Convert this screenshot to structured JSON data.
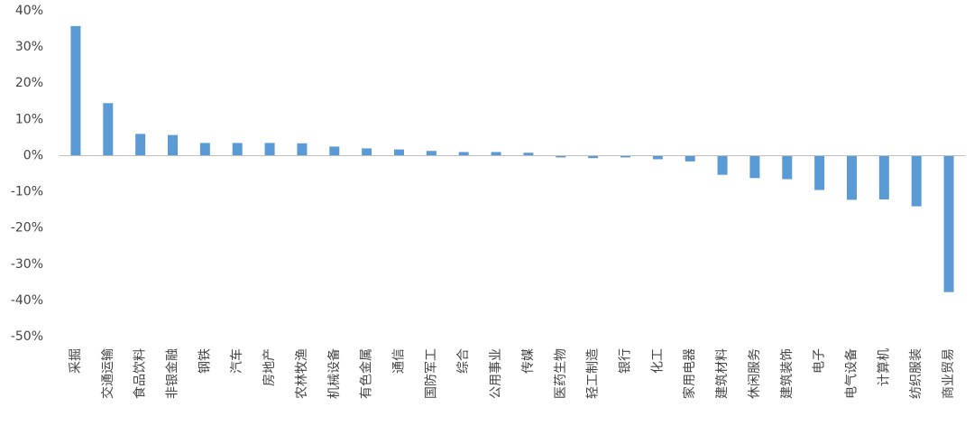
{
  "chart_data": {
    "type": "bar",
    "categories": [
      "采掘",
      "交通运输",
      "食品饮料",
      "非银金融",
      "钢铁",
      "汽车",
      "房地产",
      "农林牧渔",
      "机械设备",
      "有色金属",
      "通信",
      "国防军工",
      "综合",
      "公用事业",
      "传媒",
      "医药生物",
      "轻工制造",
      "银行",
      "化工",
      "家用电器",
      "建筑材料",
      "休闲服务",
      "建筑装饰",
      "电子",
      "电气设备",
      "计算机",
      "纺织服装",
      "商业贸易"
    ],
    "values": [
      35.8,
      14.5,
      6.0,
      5.7,
      3.5,
      3.5,
      3.5,
      3.4,
      2.5,
      2.0,
      1.7,
      1.3,
      1.0,
      1.0,
      0.8,
      -0.5,
      -0.7,
      -0.5,
      -1.0,
      -1.6,
      -5.3,
      -6.2,
      -6.5,
      -9.5,
      -12.2,
      -12.1,
      -14.0,
      -37.7
    ],
    "color": "#5b9bd5",
    "ylim": [
      -50,
      40
    ],
    "yticks": [
      {
        "value": -50,
        "label": "-50%"
      },
      {
        "value": -40,
        "label": "-40%"
      },
      {
        "value": -30,
        "label": "-30%"
      },
      {
        "value": -20,
        "label": "-20%"
      },
      {
        "value": -10,
        "label": "-10%"
      },
      {
        "value": 0,
        "label": "0%"
      },
      {
        "value": 10,
        "label": "10%"
      },
      {
        "value": 20,
        "label": "20%"
      },
      {
        "value": 30,
        "label": "30%"
      },
      {
        "value": 40,
        "label": "40%"
      }
    ],
    "grid": false
  }
}
